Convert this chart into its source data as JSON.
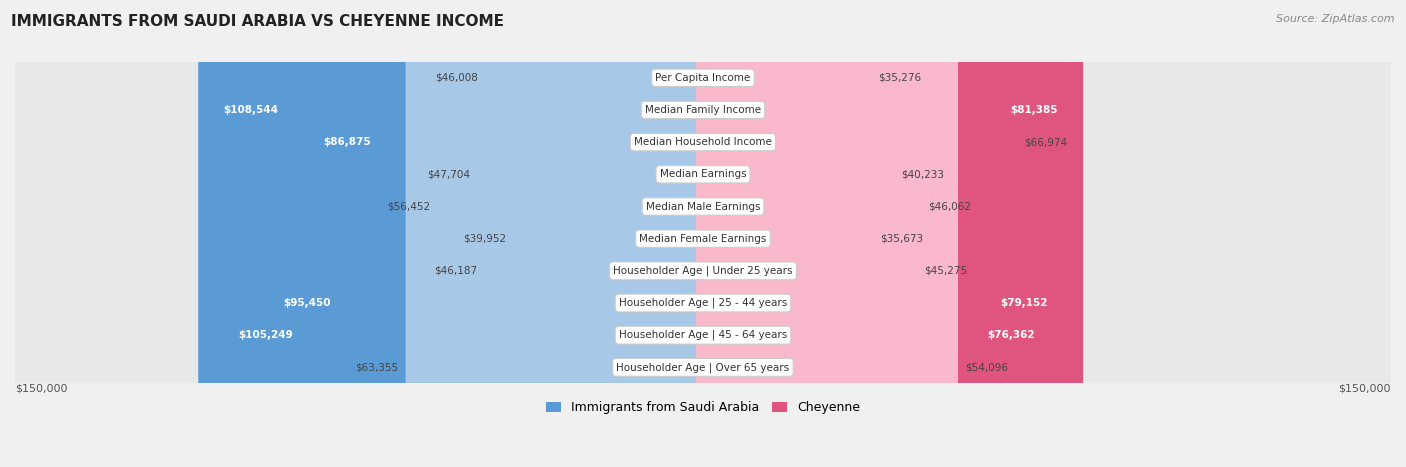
{
  "title": "IMMIGRANTS FROM SAUDI ARABIA VS CHEYENNE INCOME",
  "source": "Source: ZipAtlas.com",
  "categories": [
    "Per Capita Income",
    "Median Family Income",
    "Median Household Income",
    "Median Earnings",
    "Median Male Earnings",
    "Median Female Earnings",
    "Householder Age | Under 25 years",
    "Householder Age | 25 - 44 years",
    "Householder Age | 45 - 64 years",
    "Householder Age | Over 65 years"
  ],
  "left_values": [
    46008,
    108544,
    86875,
    47704,
    56452,
    39952,
    46187,
    95450,
    105249,
    63355
  ],
  "right_values": [
    35276,
    81385,
    66974,
    40233,
    46062,
    35673,
    45275,
    79152,
    76362,
    54096
  ],
  "left_labels": [
    "$46,008",
    "$108,544",
    "$86,875",
    "$47,704",
    "$56,452",
    "$39,952",
    "$46,187",
    "$95,450",
    "$105,249",
    "$63,355"
  ],
  "right_labels": [
    "$35,276",
    "$81,385",
    "$66,974",
    "$40,233",
    "$46,062",
    "$35,673",
    "$45,275",
    "$79,152",
    "$76,362",
    "$54,096"
  ],
  "left_color_light": "#a8c8e8",
  "left_color_dark": "#5b9bd5",
  "right_color_light": "#f9b8cc",
  "right_color_dark": "#e05580",
  "max_value": 150000,
  "legend_left": "Immigrants from Saudi Arabia",
  "legend_right": "Cheyenne",
  "bg_color": "#f0f0f0",
  "row_bg_light": "#f8f8f8",
  "row_bg_dark": "#e8e8e8",
  "label_inside_threshold": 75000,
  "text_color_outside": "#444444",
  "text_color_inside": "#ffffff"
}
